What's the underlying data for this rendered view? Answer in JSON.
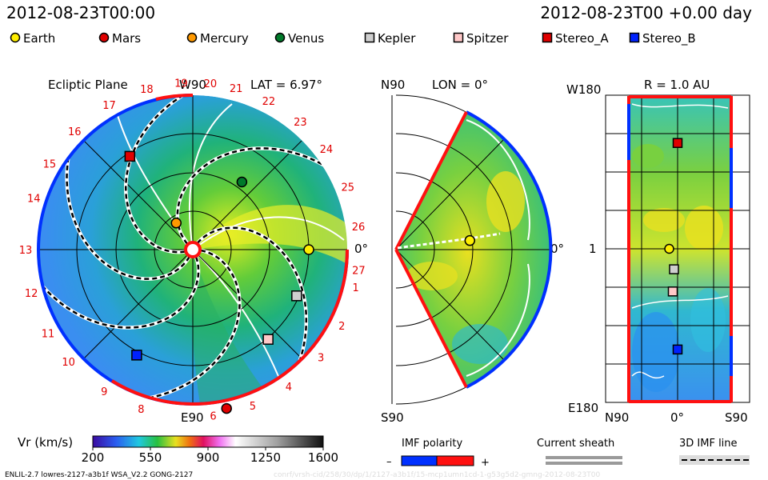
{
  "header": {
    "timestamp_left": "2012-08-23T00:00",
    "timestamp_right": "2012-08-23T00 +0.00 day"
  },
  "legend": [
    {
      "name": "Earth",
      "color": "#ffee00"
    },
    {
      "name": "Mars",
      "color": "#e00000"
    },
    {
      "name": "Mercury",
      "color": "#ff9900"
    },
    {
      "name": "Venus",
      "color": "#007a2a"
    },
    {
      "name": "Kepler",
      "color": "#cfcfcf"
    },
    {
      "name": "Spitzer",
      "color": "#ffc8c8"
    },
    {
      "name": "Stereo_A",
      "color": "#e00000"
    },
    {
      "name": "Stereo_B",
      "color": "#0022ff"
    }
  ],
  "panels": {
    "ecliptic": {
      "title": "Ecliptic Plane",
      "top_label": "W90",
      "bottom_label": "E90",
      "right_label": "0°",
      "lat_label": "LAT = 6.97°"
    },
    "meridional": {
      "lon_label": "LON = 0°",
      "top_label": "N90",
      "bottom_label": "S90",
      "right_label": "0°"
    },
    "sphere": {
      "r_label": "R = 1.0 AU",
      "top_left_label": "W180",
      "mid_left_label": "1",
      "bottom_left_label": "E180",
      "bottom_axis": [
        "N90",
        "0°",
        "S90"
      ]
    }
  },
  "colorbar": {
    "label": "Vr (km/s)",
    "ticks": [
      "200",
      "550",
      "900",
      "1250",
      "1600"
    ]
  },
  "imf": {
    "polarity_label": "IMF polarity",
    "minus": "–",
    "plus": "+",
    "current_sheath_label": "Current sheath",
    "imf_line_label": "3D IMF line"
  },
  "footer": {
    "model": "ENLIL-2.7 lowres-2127-a3b1f WSA_V2.2 GONG-2127",
    "watermark": "conrf/vrsh-cid/258/30/dp/1/2127-a3b1f/15-mcp1umn1cd-1-g53g5d2-gmng-2012-08-23T00"
  },
  "chart_data": [
    {
      "type": "heatmap",
      "panel": "ecliptic",
      "title": "Ecliptic Plane",
      "variable": "Vr (km/s)",
      "color_range": [
        200,
        1600
      ],
      "carrington_ticks": [
        "1",
        "2",
        "3",
        "4",
        "5",
        "6",
        "8",
        "9",
        "10",
        "11",
        "12",
        "13",
        "14",
        "15",
        "16",
        "17",
        "18",
        "19",
        "20",
        "21",
        "22",
        "23",
        "24",
        "25",
        "26",
        "27"
      ],
      "bodies": [
        {
          "name": "Earth",
          "r_au": 1.0,
          "lon_deg": 0
        },
        {
          "name": "Mars",
          "r_au": 1.4,
          "lon_deg": -78
        },
        {
          "name": "Mercury",
          "r_au": 0.27,
          "lon_deg": 122
        },
        {
          "name": "Venus",
          "r_au": 0.72,
          "lon_deg": 54
        },
        {
          "name": "Kepler",
          "r_au": 0.98,
          "lon_deg": -24
        },
        {
          "name": "Spitzer",
          "r_au": 1.01,
          "lon_deg": -50
        },
        {
          "name": "Stereo_A",
          "r_au": 0.97,
          "lon_deg": 124
        },
        {
          "name": "Stereo_B",
          "r_au": 1.03,
          "lon_deg": -118
        }
      ]
    },
    {
      "type": "heatmap",
      "panel": "meridional",
      "variable": "Vr (km/s)",
      "lat_range": [
        -60,
        60
      ],
      "bodies": [
        {
          "name": "Earth",
          "r_au": 1.0,
          "lat_deg": 7
        }
      ]
    },
    {
      "type": "heatmap",
      "panel": "sphere",
      "variable": "Vr (km/s)",
      "r_au": 1.0,
      "lat_range": [
        -60,
        60
      ],
      "lon_range": [
        -180,
        180
      ],
      "bodies": [
        {
          "name": "Stereo_A",
          "lat_deg": 0,
          "lon_deg": 124
        },
        {
          "name": "Earth",
          "lat_deg": 7,
          "lon_deg": 0
        },
        {
          "name": "Kepler",
          "lat_deg": 3,
          "lon_deg": -24
        },
        {
          "name": "Spitzer",
          "lat_deg": 4,
          "lon_deg": -50
        },
        {
          "name": "Stereo_B",
          "lat_deg": 0,
          "lon_deg": -118
        }
      ]
    }
  ]
}
